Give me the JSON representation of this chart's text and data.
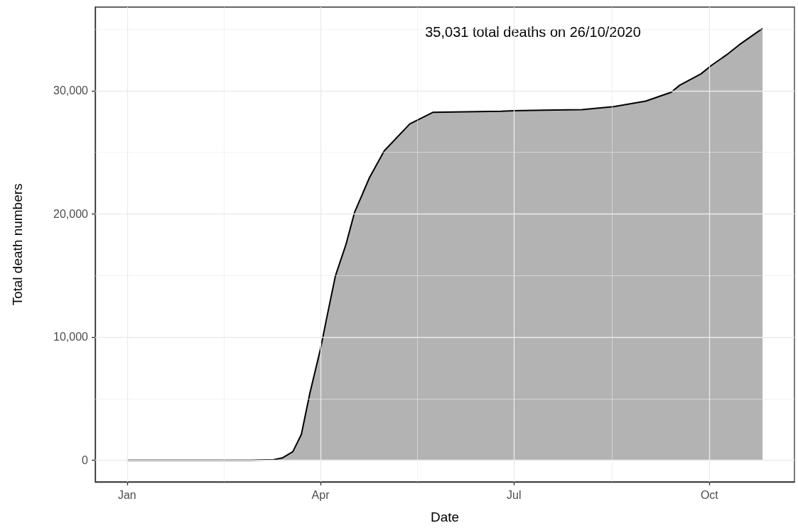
{
  "chart_data": {
    "type": "area",
    "xlabel": "Date",
    "ylabel": "Total death numbers",
    "annotations": [
      "35,031 total deaths on 26/10/2020"
    ],
    "x": [
      "2020-01-01",
      "2020-02-01",
      "2020-02-28",
      "2020-03-10",
      "2020-03-14",
      "2020-03-19",
      "2020-03-23",
      "2020-03-27",
      "2020-04-01",
      "2020-04-04",
      "2020-04-08",
      "2020-04-13",
      "2020-04-17",
      "2020-04-24",
      "2020-05-01",
      "2020-05-13",
      "2020-05-24",
      "2020-06-25",
      "2020-07-01",
      "2020-08-02",
      "2020-08-17",
      "2020-09-01",
      "2020-09-13",
      "2020-09-17",
      "2020-09-27",
      "2020-10-02",
      "2020-10-09",
      "2020-10-15",
      "2020-10-25",
      "2020-10-26"
    ],
    "series": [
      {
        "color": "#b3b3b3",
        "values": [
          0,
          0,
          0,
          50,
          190,
          700,
          2110,
          5450,
          9050,
          11620,
          14960,
          17530,
          20110,
          22930,
          25120,
          27300,
          28250,
          28330,
          28380,
          28460,
          28710,
          29150,
          29870,
          30440,
          31360,
          32060,
          32900,
          33720,
          34930,
          35031
        ]
      }
    ],
    "xlim": [
      "2019-12-17",
      "2020-11-10"
    ],
    "xticks": [
      {
        "value": "2020-01-01",
        "label": "Jan"
      },
      {
        "value": "2020-04-01",
        "label": "Apr"
      },
      {
        "value": "2020-07-01",
        "label": "Jul"
      },
      {
        "value": "2020-10-01",
        "label": "Oct"
      }
    ],
    "ylim": [
      -1752,
      36783
    ],
    "yticks": [
      {
        "value": 0,
        "label": "0"
      },
      {
        "value": 10000,
        "label": "10,000"
      },
      {
        "value": 20000,
        "label": "20,000"
      },
      {
        "value": 30000,
        "label": "30,000"
      }
    ],
    "grid": true
  }
}
